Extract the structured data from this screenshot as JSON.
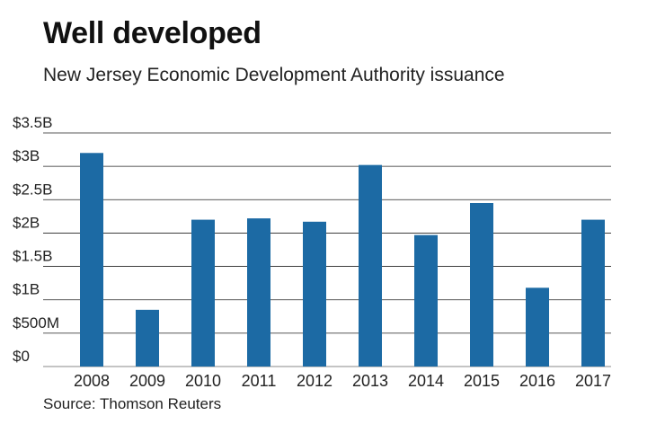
{
  "chart_data": {
    "type": "bar",
    "title": "Well developed",
    "subtitle": "New Jersey Economic Development Authority issuance",
    "source": "Source: Thomson Reuters",
    "categories": [
      "2008",
      "2009",
      "2010",
      "2011",
      "2012",
      "2013",
      "2014",
      "2015",
      "2016",
      "2017"
    ],
    "values": [
      3.2,
      0.85,
      2.2,
      2.22,
      2.17,
      3.02,
      1.97,
      2.45,
      1.18,
      2.2
    ],
    "unit": "billions USD",
    "ylim": [
      0,
      3.5
    ],
    "yticks": [
      0,
      0.5,
      1,
      1.5,
      2,
      2.5,
      3,
      3.5
    ],
    "ytick_labels": [
      "$0",
      "$500M",
      "$1B",
      "$1.5B",
      "$2B",
      "$2.5B",
      "$3B",
      "$3.5B"
    ],
    "xlabel": "",
    "ylabel": "",
    "grid": true,
    "bar_color": "#1c6aa4",
    "grid_color": "#222222"
  }
}
